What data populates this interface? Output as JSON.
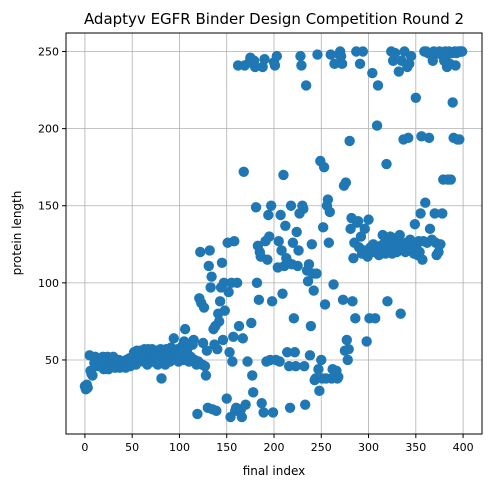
{
  "chart_data": {
    "type": "scatter",
    "title": "Adaptyv EGFR Binder Design Competition Round 2",
    "xlabel": "final index",
    "ylabel": "protein length",
    "xlim": [
      -20,
      420
    ],
    "ylim": [
      2,
      262
    ],
    "xticks": [
      0,
      50,
      100,
      150,
      200,
      250,
      300,
      350,
      400
    ],
    "yticks": [
      50,
      100,
      150,
      200,
      250
    ],
    "grid": true,
    "color": "#1f77b4",
    "points": [
      [
        0,
        33
      ],
      [
        1,
        31
      ],
      [
        2,
        34
      ],
      [
        3,
        32
      ],
      [
        5,
        53
      ],
      [
        6,
        43
      ],
      [
        7,
        41
      ],
      [
        8,
        40
      ],
      [
        10,
        48
      ],
      [
        11,
        52
      ],
      [
        12,
        51
      ],
      [
        14,
        46
      ],
      [
        15,
        50
      ],
      [
        16,
        47
      ],
      [
        18,
        49
      ],
      [
        19,
        52
      ],
      [
        20,
        44
      ],
      [
        21,
        47
      ],
      [
        22,
        50
      ],
      [
        23,
        46
      ],
      [
        24,
        52
      ],
      [
        25,
        44
      ],
      [
        26,
        48
      ],
      [
        27,
        51
      ],
      [
        28,
        46
      ],
      [
        30,
        52
      ],
      [
        31,
        47
      ],
      [
        32,
        45
      ],
      [
        33,
        49
      ],
      [
        34,
        46
      ],
      [
        35,
        47
      ],
      [
        36,
        50
      ],
      [
        37,
        45
      ],
      [
        38,
        48
      ],
      [
        40,
        46
      ],
      [
        41,
        49
      ],
      [
        42,
        47
      ],
      [
        43,
        45
      ],
      [
        44,
        50
      ],
      [
        45,
        47
      ],
      [
        46,
        48
      ],
      [
        47,
        51
      ],
      [
        48,
        46
      ],
      [
        49,
        47
      ],
      [
        50,
        52
      ],
      [
        51,
        50
      ],
      [
        52,
        55
      ],
      [
        53,
        48
      ],
      [
        54,
        47
      ],
      [
        55,
        56
      ],
      [
        56,
        52
      ],
      [
        57,
        55
      ],
      [
        58,
        50
      ],
      [
        59,
        56
      ],
      [
        60,
        51
      ],
      [
        61,
        54
      ],
      [
        62,
        49
      ],
      [
        63,
        57
      ],
      [
        64,
        52
      ],
      [
        65,
        55
      ],
      [
        66,
        47
      ],
      [
        67,
        57
      ],
      [
        68,
        50
      ],
      [
        69,
        54
      ],
      [
        70,
        52
      ],
      [
        71,
        57
      ],
      [
        72,
        49
      ],
      [
        73,
        55
      ],
      [
        74,
        52
      ],
      [
        75,
        56
      ],
      [
        76,
        51
      ],
      [
        77,
        47
      ],
      [
        78,
        55
      ],
      [
        79,
        53
      ],
      [
        80,
        57
      ],
      [
        81,
        38
      ],
      [
        82,
        50
      ],
      [
        83,
        56
      ],
      [
        84,
        54
      ],
      [
        85,
        47
      ],
      [
        86,
        57
      ],
      [
        87,
        53
      ],
      [
        88,
        52
      ],
      [
        89,
        55
      ],
      [
        90,
        49
      ],
      [
        91,
        58
      ],
      [
        92,
        56
      ],
      [
        93,
        51
      ],
      [
        94,
        64
      ],
      [
        95,
        55
      ],
      [
        96,
        52
      ],
      [
        97,
        50
      ],
      [
        98,
        57
      ],
      [
        99,
        49
      ],
      [
        100,
        53
      ],
      [
        101,
        50
      ],
      [
        102,
        55
      ],
      [
        103,
        59
      ],
      [
        104,
        50
      ],
      [
        105,
        62
      ],
      [
        106,
        70
      ],
      [
        107,
        53
      ],
      [
        108,
        55
      ],
      [
        109,
        58
      ],
      [
        110,
        49
      ],
      [
        112,
        52
      ],
      [
        114,
        60
      ],
      [
        115,
        63
      ],
      [
        116,
        50
      ],
      [
        118,
        47
      ],
      [
        119,
        15
      ],
      [
        120,
        49
      ],
      [
        121,
        90
      ],
      [
        122,
        120
      ],
      [
        123,
        87
      ],
      [
        124,
        47
      ],
      [
        125,
        61
      ],
      [
        126,
        84
      ],
      [
        127,
        46
      ],
      [
        128,
        40
      ],
      [
        129,
        56
      ],
      [
        130,
        19
      ],
      [
        131,
        111
      ],
      [
        132,
        121
      ],
      [
        133,
        97
      ],
      [
        134,
        104
      ],
      [
        135,
        18
      ],
      [
        136,
        70
      ],
      [
        137,
        60
      ],
      [
        138,
        72
      ],
      [
        139,
        17
      ],
      [
        140,
        57
      ],
      [
        141,
        80
      ],
      [
        142,
        75
      ],
      [
        143,
        88
      ],
      [
        144,
        97
      ],
      [
        145,
        113
      ],
      [
        146,
        63
      ],
      [
        147,
        100
      ],
      [
        148,
        82
      ],
      [
        150,
        25
      ],
      [
        151,
        126
      ],
      [
        152,
        94
      ],
      [
        153,
        55
      ],
      [
        154,
        13
      ],
      [
        155,
        100
      ],
      [
        156,
        49
      ],
      [
        157,
        65
      ],
      [
        158,
        127
      ],
      [
        159,
        17
      ],
      [
        160,
        19
      ],
      [
        161,
        100
      ],
      [
        162,
        241
      ],
      [
        163,
        72
      ],
      [
        165,
        18
      ],
      [
        166,
        13
      ],
      [
        167,
        64
      ],
      [
        168,
        172
      ],
      [
        169,
        241
      ],
      [
        170,
        21
      ],
      [
        172,
        49
      ],
      [
        174,
        243
      ],
      [
        175,
        246
      ],
      [
        176,
        74
      ],
      [
        177,
        40
      ],
      [
        178,
        29
      ],
      [
        179,
        244
      ],
      [
        180,
        240
      ],
      [
        181,
        149
      ],
      [
        182,
        100
      ],
      [
        183,
        124
      ],
      [
        184,
        89
      ],
      [
        185,
        120
      ],
      [
        186,
        117
      ],
      [
        187,
        22
      ],
      [
        188,
        240
      ],
      [
        189,
        16
      ],
      [
        190,
        245
      ],
      [
        191,
        127
      ],
      [
        192,
        49
      ],
      [
        193,
        115
      ],
      [
        194,
        144
      ],
      [
        195,
        130
      ],
      [
        196,
        50
      ],
      [
        197,
        150
      ],
      [
        198,
        88
      ],
      [
        199,
        16
      ],
      [
        200,
        243
      ],
      [
        201,
        241
      ],
      [
        202,
        50
      ],
      [
        203,
        247
      ],
      [
        204,
        110
      ],
      [
        205,
        127
      ],
      [
        206,
        49
      ],
      [
        207,
        144
      ],
      [
        208,
        121
      ],
      [
        209,
        93
      ],
      [
        210,
        170
      ],
      [
        211,
        111
      ],
      [
        212,
        137
      ],
      [
        213,
        116
      ],
      [
        214,
        55
      ],
      [
        215,
        113
      ],
      [
        216,
        46
      ],
      [
        217,
        19
      ],
      [
        218,
        150
      ],
      [
        219,
        112
      ],
      [
        220,
        126
      ],
      [
        221,
        77
      ],
      [
        222,
        55
      ],
      [
        223,
        46
      ],
      [
        224,
        133
      ],
      [
        225,
        111
      ],
      [
        226,
        121
      ],
      [
        227,
        145
      ],
      [
        228,
        247
      ],
      [
        229,
        241
      ],
      [
        230,
        150
      ],
      [
        231,
        148
      ],
      [
        232,
        46
      ],
      [
        233,
        21
      ],
      [
        234,
        228
      ],
      [
        235,
        108
      ],
      [
        236,
        101
      ],
      [
        237,
        112
      ],
      [
        238,
        53
      ],
      [
        239,
        72
      ],
      [
        240,
        125
      ],
      [
        241,
        106
      ],
      [
        242,
        95
      ],
      [
        243,
        37
      ],
      [
        244,
        38
      ],
      [
        245,
        106
      ],
      [
        246,
        248
      ],
      [
        247,
        44
      ],
      [
        248,
        30
      ],
      [
        249,
        179
      ],
      [
        250,
        50
      ],
      [
        251,
        38
      ],
      [
        252,
        136
      ],
      [
        253,
        175
      ],
      [
        254,
        86
      ],
      [
        255,
        38
      ],
      [
        256,
        150
      ],
      [
        257,
        154
      ],
      [
        258,
        126
      ],
      [
        259,
        146
      ],
      [
        260,
        248
      ],
      [
        261,
        38
      ],
      [
        262,
        44
      ],
      [
        263,
        99
      ],
      [
        264,
        242
      ],
      [
        265,
        40
      ],
      [
        266,
        43
      ],
      [
        267,
        38
      ],
      [
        268,
        39
      ],
      [
        269,
        248
      ],
      [
        270,
        250
      ],
      [
        271,
        247
      ],
      [
        272,
        242
      ],
      [
        273,
        89
      ],
      [
        274,
        163
      ],
      [
        275,
        56
      ],
      [
        276,
        165
      ],
      [
        277,
        63
      ],
      [
        278,
        50
      ],
      [
        279,
        57
      ],
      [
        280,
        192
      ],
      [
        281,
        135
      ],
      [
        282,
        142
      ],
      [
        283,
        88
      ],
      [
        284,
        116
      ],
      [
        285,
        126
      ],
      [
        286,
        77
      ],
      [
        287,
        250
      ],
      [
        288,
        139
      ],
      [
        289,
        140
      ],
      [
        290,
        123
      ],
      [
        291,
        242
      ],
      [
        292,
        130
      ],
      [
        293,
        119
      ],
      [
        294,
        250
      ],
      [
        295,
        121
      ],
      [
        296,
        135
      ],
      [
        297,
        119
      ],
      [
        298,
        62
      ],
      [
        299,
        117
      ],
      [
        300,
        141
      ],
      [
        301,
        77
      ],
      [
        302,
        123
      ],
      [
        303,
        120
      ],
      [
        304,
        236
      ],
      [
        305,
        125
      ],
      [
        306,
        120
      ],
      [
        307,
        77
      ],
      [
        308,
        122
      ],
      [
        309,
        202
      ],
      [
        310,
        228
      ],
      [
        311,
        118
      ],
      [
        312,
        123
      ],
      [
        313,
        124
      ],
      [
        314,
        120
      ],
      [
        315,
        131
      ],
      [
        316,
        125
      ],
      [
        317,
        126
      ],
      [
        318,
        119
      ],
      [
        319,
        177
      ],
      [
        320,
        88
      ],
      [
        321,
        120
      ],
      [
        322,
        124
      ],
      [
        323,
        130
      ],
      [
        324,
        250
      ],
      [
        325,
        119
      ],
      [
        326,
        244
      ],
      [
        327,
        128
      ],
      [
        328,
        249
      ],
      [
        329,
        129
      ],
      [
        330,
        120
      ],
      [
        331,
        124
      ],
      [
        332,
        237
      ],
      [
        333,
        131
      ],
      [
        334,
        80
      ],
      [
        335,
        244
      ],
      [
        336,
        125
      ],
      [
        337,
        193
      ],
      [
        338,
        250
      ],
      [
        339,
        120
      ],
      [
        340,
        126
      ],
      [
        341,
        240
      ],
      [
        342,
        194
      ],
      [
        343,
        242
      ],
      [
        344,
        128
      ],
      [
        345,
        247
      ],
      [
        346,
        124
      ],
      [
        347,
        121
      ],
      [
        348,
        119
      ],
      [
        349,
        138
      ],
      [
        350,
        220
      ],
      [
        351,
        125
      ],
      [
        352,
        118
      ],
      [
        353,
        127
      ],
      [
        354,
        120
      ],
      [
        355,
        145
      ],
      [
        356,
        195
      ],
      [
        357,
        115
      ],
      [
        358,
        127
      ],
      [
        359,
        250
      ],
      [
        360,
        152
      ],
      [
        361,
        250
      ],
      [
        362,
        126
      ],
      [
        363,
        249
      ],
      [
        364,
        194
      ],
      [
        365,
        135
      ],
      [
        366,
        248
      ],
      [
        367,
        128
      ],
      [
        368,
        244
      ],
      [
        369,
        250
      ],
      [
        370,
        145
      ],
      [
        371,
        126
      ],
      [
        372,
        118
      ],
      [
        373,
        249
      ],
      [
        374,
        120
      ],
      [
        375,
        250
      ],
      [
        376,
        125
      ],
      [
        377,
        248
      ],
      [
        378,
        145
      ],
      [
        379,
        167
      ],
      [
        380,
        244
      ],
      [
        381,
        250
      ],
      [
        382,
        247
      ],
      [
        383,
        240
      ],
      [
        384,
        167
      ],
      [
        385,
        250
      ],
      [
        386,
        242
      ],
      [
        387,
        167
      ],
      [
        388,
        249
      ],
      [
        389,
        217
      ],
      [
        390,
        194
      ],
      [
        391,
        250
      ],
      [
        392,
        241
      ],
      [
        393,
        249
      ],
      [
        394,
        193
      ],
      [
        395,
        250
      ],
      [
        396,
        193
      ],
      [
        397,
        250
      ],
      [
        398,
        250
      ],
      [
        399,
        250
      ]
    ]
  }
}
